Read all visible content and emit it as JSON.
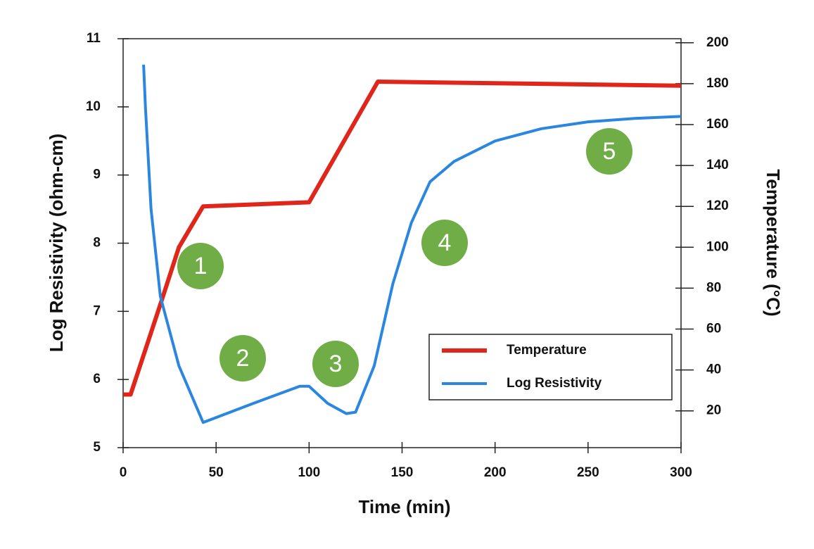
{
  "chart_data": {
    "type": "line",
    "xlabel": "Time (min)",
    "ylabel": "Log Resistivity (ohm-cm)",
    "y2label": "Temperature (°C)",
    "xlim": [
      0,
      300
    ],
    "xticks": [
      0,
      50,
      100,
      150,
      200,
      250,
      300
    ],
    "ylim": [
      5,
      11
    ],
    "yticks": [
      5,
      6,
      7,
      8,
      9,
      10,
      11
    ],
    "y2lim": [
      2,
      202
    ],
    "y2ticks": [
      20,
      40,
      60,
      80,
      100,
      120,
      140,
      160,
      180,
      200
    ],
    "legend": "lower right",
    "series": [
      {
        "name": "Temperature",
        "color": "#e0261b",
        "axis": "y2",
        "x": [
          0,
          4,
          20,
          30,
          43,
          100,
          137,
          300
        ],
        "values": [
          28,
          28,
          72,
          100,
          120,
          122,
          181,
          179
        ]
      },
      {
        "name": "Log Resistivity",
        "color": "#2b86e0",
        "x": [
          11,
          12,
          15,
          20,
          30,
          43,
          70,
          95,
          100,
          110,
          120,
          125,
          135,
          145,
          155,
          165,
          178,
          200,
          225,
          250,
          275,
          300
        ],
        "values": [
          10.62,
          10.0,
          8.5,
          7.22,
          6.2,
          5.37,
          5.65,
          5.9,
          5.9,
          5.65,
          5.5,
          5.52,
          6.2,
          7.4,
          8.3,
          8.9,
          9.2,
          9.5,
          9.68,
          9.78,
          9.83,
          9.86
        ]
      }
    ],
    "annotations": [
      "1",
      "2",
      "3",
      "4",
      "5"
    ]
  }
}
